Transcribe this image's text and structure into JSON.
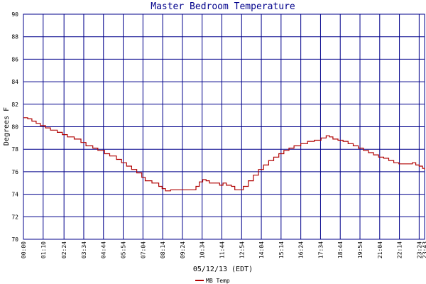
{
  "chart_data": {
    "type": "line",
    "title": "Master Bedroom Temperature",
    "xlabel": "05/12/13 (EDT)",
    "ylabel": "Degrees F",
    "ylim": [
      70,
      90
    ],
    "yticks": [
      70,
      72,
      74,
      76,
      78,
      80,
      82,
      84,
      86,
      88,
      90
    ],
    "xlim": [
      0,
      23.72
    ],
    "xticks": [
      {
        "t": 0.0,
        "label": "00:00"
      },
      {
        "t": 1.1667,
        "label": "01:10"
      },
      {
        "t": 2.4,
        "label": "02:24"
      },
      {
        "t": 3.5667,
        "label": "03:34"
      },
      {
        "t": 4.7333,
        "label": "04:44"
      },
      {
        "t": 5.9,
        "label": "05:54"
      },
      {
        "t": 7.0667,
        "label": "07:04"
      },
      {
        "t": 8.2333,
        "label": "08:14"
      },
      {
        "t": 9.4,
        "label": "09:24"
      },
      {
        "t": 10.5667,
        "label": "10:34"
      },
      {
        "t": 11.7333,
        "label": "11:44"
      },
      {
        "t": 12.9,
        "label": "12:54"
      },
      {
        "t": 14.0667,
        "label": "14:04"
      },
      {
        "t": 15.2333,
        "label": "15:14"
      },
      {
        "t": 16.4,
        "label": "16:24"
      },
      {
        "t": 17.5667,
        "label": "17:34"
      },
      {
        "t": 18.7333,
        "label": "18:44"
      },
      {
        "t": 19.9,
        "label": "19:54"
      },
      {
        "t": 21.0667,
        "label": "21:04"
      },
      {
        "t": 22.2333,
        "label": "22:14"
      },
      {
        "t": 23.4,
        "label": "23:24"
      },
      {
        "t": 23.72,
        "label": "23:43"
      }
    ],
    "grid": true,
    "legend_position": "bottom-left",
    "series": [
      {
        "name": "MB Temp",
        "color": "#b00000",
        "step": true,
        "points": [
          [
            0.0,
            80.8
          ],
          [
            0.25,
            80.7
          ],
          [
            0.5,
            80.5
          ],
          [
            0.75,
            80.3
          ],
          [
            1.0,
            80.1
          ],
          [
            1.3,
            79.9
          ],
          [
            1.6,
            79.7
          ],
          [
            2.0,
            79.5
          ],
          [
            2.3,
            79.3
          ],
          [
            2.6,
            79.1
          ],
          [
            3.0,
            78.9
          ],
          [
            3.4,
            78.6
          ],
          [
            3.7,
            78.3
          ],
          [
            4.1,
            78.1
          ],
          [
            4.4,
            77.9
          ],
          [
            4.8,
            77.6
          ],
          [
            5.1,
            77.4
          ],
          [
            5.5,
            77.1
          ],
          [
            5.8,
            76.8
          ],
          [
            6.1,
            76.5
          ],
          [
            6.4,
            76.2
          ],
          [
            6.7,
            75.9
          ],
          [
            7.0,
            75.5
          ],
          [
            7.2,
            75.2
          ],
          [
            7.6,
            75.0
          ],
          [
            8.0,
            74.7
          ],
          [
            8.2,
            74.5
          ],
          [
            8.4,
            74.3
          ],
          [
            8.7,
            74.4
          ],
          [
            9.2,
            74.4
          ],
          [
            9.8,
            74.4
          ],
          [
            10.2,
            74.7
          ],
          [
            10.4,
            75.1
          ],
          [
            10.6,
            75.3
          ],
          [
            10.8,
            75.2
          ],
          [
            11.0,
            75.0
          ],
          [
            11.3,
            75.0
          ],
          [
            11.6,
            74.8
          ],
          [
            11.8,
            75.0
          ],
          [
            12.0,
            74.8
          ],
          [
            12.3,
            74.7
          ],
          [
            12.5,
            74.4
          ],
          [
            12.8,
            74.4
          ],
          [
            13.0,
            74.7
          ],
          [
            13.3,
            75.2
          ],
          [
            13.6,
            75.7
          ],
          [
            13.9,
            76.2
          ],
          [
            14.2,
            76.6
          ],
          [
            14.5,
            77.0
          ],
          [
            14.8,
            77.3
          ],
          [
            15.1,
            77.6
          ],
          [
            15.4,
            77.9
          ],
          [
            15.7,
            78.1
          ],
          [
            16.0,
            78.3
          ],
          [
            16.4,
            78.5
          ],
          [
            16.8,
            78.7
          ],
          [
            17.2,
            78.8
          ],
          [
            17.6,
            79.0
          ],
          [
            17.9,
            79.2
          ],
          [
            18.1,
            79.1
          ],
          [
            18.3,
            78.9
          ],
          [
            18.6,
            78.8
          ],
          [
            18.9,
            78.7
          ],
          [
            19.2,
            78.5
          ],
          [
            19.5,
            78.3
          ],
          [
            19.8,
            78.1
          ],
          [
            20.1,
            77.9
          ],
          [
            20.4,
            77.7
          ],
          [
            20.7,
            77.5
          ],
          [
            21.0,
            77.3
          ],
          [
            21.3,
            77.2
          ],
          [
            21.6,
            77.0
          ],
          [
            21.9,
            76.8
          ],
          [
            22.2,
            76.7
          ],
          [
            22.5,
            76.7
          ],
          [
            22.8,
            76.7
          ],
          [
            23.0,
            76.8
          ],
          [
            23.2,
            76.6
          ],
          [
            23.4,
            76.5
          ],
          [
            23.6,
            76.3
          ],
          [
            23.72,
            76.2
          ]
        ]
      }
    ],
    "colors": {
      "grid": "#00008b",
      "frame": "#00008b",
      "title": "#00008b",
      "background": "#ffffff"
    }
  }
}
